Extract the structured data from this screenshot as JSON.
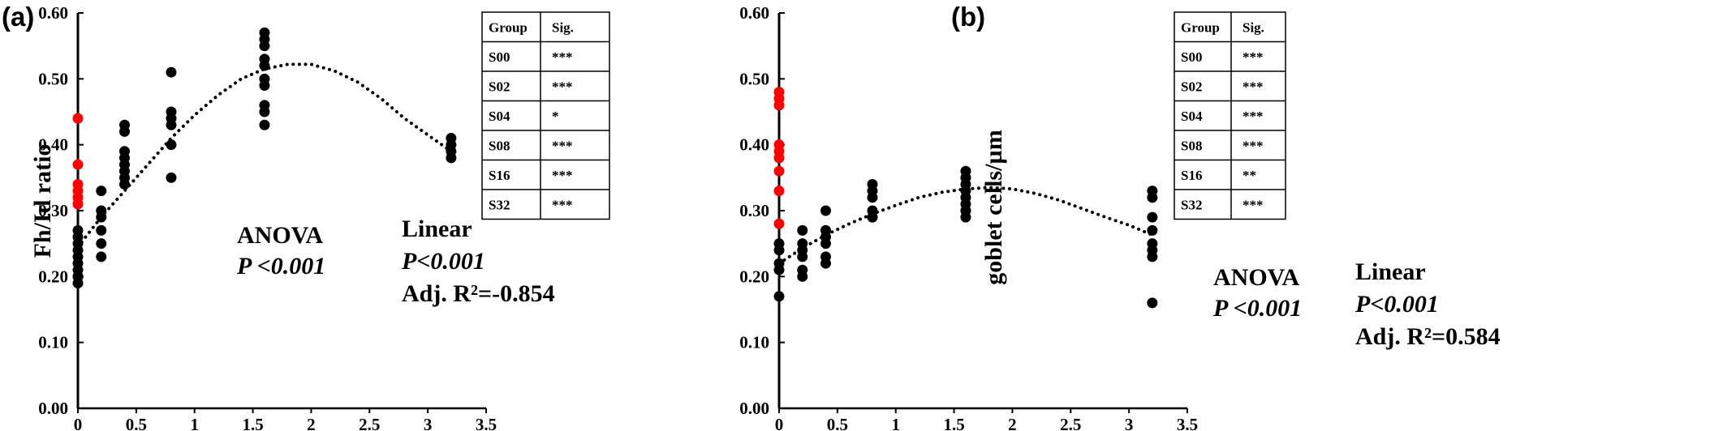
{
  "chart_data": [
    {
      "type": "scatter",
      "panel_label": "(a)",
      "ylabel": "Fh/Id ratio",
      "xlim": [
        0,
        3.5
      ],
      "ylim": [
        0,
        0.6
      ],
      "xticks": [
        "0",
        "0.5",
        "1",
        "1.5",
        "2",
        "2.5",
        "3",
        "3.5"
      ],
      "yticks": [
        "0.00",
        "0.10",
        "0.20",
        "0.30",
        "0.40",
        "0.50",
        "0.60"
      ],
      "series": [
        {
          "color": "#ff0000",
          "x": [
            0,
            0,
            0,
            0,
            0,
            0,
            0
          ],
          "y": [
            0.44,
            0.37,
            0.34,
            0.33,
            0.32,
            0.31,
            0.31
          ]
        },
        {
          "color": "#000000",
          "x": [
            0,
            0,
            0,
            0,
            0,
            0,
            0,
            0,
            0,
            0,
            0.2,
            0.2,
            0.2,
            0.2,
            0.2,
            0.2,
            0.4,
            0.4,
            0.4,
            0.4,
            0.4,
            0.4,
            0.4,
            0.4,
            0.8,
            0.8,
            0.8,
            0.8,
            0.8,
            0.8,
            1.6,
            1.6,
            1.6,
            1.6,
            1.6,
            1.6,
            1.6,
            1.6,
            1.6,
            1.6,
            3.2,
            3.2,
            3.2,
            3.2
          ],
          "y": [
            0.27,
            0.26,
            0.25,
            0.24,
            0.23,
            0.22,
            0.21,
            0.2,
            0.2,
            0.19,
            0.33,
            0.3,
            0.29,
            0.27,
            0.25,
            0.23,
            0.43,
            0.42,
            0.39,
            0.38,
            0.37,
            0.36,
            0.35,
            0.34,
            0.51,
            0.45,
            0.44,
            0.43,
            0.4,
            0.35,
            0.57,
            0.56,
            0.55,
            0.53,
            0.52,
            0.5,
            0.49,
            0.46,
            0.45,
            0.43,
            0.41,
            0.4,
            0.39,
            0.38
          ]
        }
      ],
      "trendline": {
        "style": "dotted",
        "x": [
          0,
          0.2,
          0.4,
          0.6,
          0.8,
          1,
          1.2,
          1.4,
          1.6,
          1.8,
          2,
          2.2,
          2.4,
          2.6,
          2.8,
          3,
          3.2
        ],
        "y": [
          0.245,
          0.29,
          0.33,
          0.37,
          0.41,
          0.445,
          0.475,
          0.5,
          0.515,
          0.522,
          0.522,
          0.512,
          0.495,
          0.47,
          0.44,
          0.415,
          0.39
        ]
      },
      "annotations": {
        "anova_title": "ANOVA",
        "anova_p": "P <0.001",
        "linear_title": "Linear",
        "linear_p": "P<0.001",
        "adj_r2": "Adj. R²=-0.854"
      },
      "table": {
        "headers": [
          "Group",
          "Sig."
        ],
        "rows": [
          [
            "S00",
            "***"
          ],
          [
            "S02",
            "***"
          ],
          [
            "S04",
            "*"
          ],
          [
            "S08",
            "***"
          ],
          [
            "S16",
            "***"
          ],
          [
            "S32",
            "***"
          ]
        ]
      }
    },
    {
      "type": "scatter",
      "panel_label": "(b)",
      "ylabel": "goblet cells/µm",
      "xlim": [
        0,
        3.5
      ],
      "ylim": [
        0,
        0.6
      ],
      "xticks": [
        "0",
        "0.5",
        "1",
        "1.5",
        "2",
        "2.5",
        "3",
        "3.5"
      ],
      "yticks": [
        "0.00",
        "0.10",
        "0.20",
        "0.30",
        "0.40",
        "0.50",
        "0.60"
      ],
      "series": [
        {
          "color": "#ff0000",
          "x": [
            0,
            0,
            0,
            0,
            0,
            0,
            0,
            0,
            0
          ],
          "y": [
            0.48,
            0.47,
            0.46,
            0.4,
            0.39,
            0.38,
            0.36,
            0.33,
            0.28
          ]
        },
        {
          "color": "#000000",
          "x": [
            0,
            0,
            0,
            0,
            0,
            0.2,
            0.2,
            0.2,
            0.2,
            0.2,
            0.2,
            0.4,
            0.4,
            0.4,
            0.4,
            0.4,
            0.4,
            0.8,
            0.8,
            0.8,
            0.8,
            0.8,
            0.8,
            1.6,
            1.6,
            1.6,
            1.6,
            1.6,
            1.6,
            1.6,
            1.6,
            1.6,
            3.2,
            3.2,
            3.2,
            3.2,
            3.2,
            3.2,
            3.2,
            3.2
          ],
          "y": [
            0.25,
            0.24,
            0.22,
            0.21,
            0.17,
            0.27,
            0.25,
            0.24,
            0.23,
            0.21,
            0.2,
            0.3,
            0.27,
            0.26,
            0.25,
            0.23,
            0.22,
            0.34,
            0.33,
            0.32,
            0.3,
            0.29,
            0.29,
            0.36,
            0.35,
            0.34,
            0.33,
            0.32,
            0.31,
            0.3,
            0.3,
            0.29,
            0.33,
            0.32,
            0.29,
            0.27,
            0.25,
            0.24,
            0.23,
            0.16
          ]
        }
      ],
      "trendline": {
        "style": "dotted",
        "x": [
          0,
          0.2,
          0.4,
          0.6,
          0.8,
          1,
          1.2,
          1.4,
          1.6,
          1.8,
          2,
          2.2,
          2.4,
          2.6,
          2.8,
          3,
          3.2
        ],
        "y": [
          0.22,
          0.243,
          0.263,
          0.28,
          0.295,
          0.308,
          0.32,
          0.328,
          0.333,
          0.335,
          0.333,
          0.326,
          0.316,
          0.303,
          0.29,
          0.278,
          0.263
        ]
      },
      "annotations": {
        "anova_title": "ANOVA",
        "anova_p": "P <0.001",
        "linear_title": "Linear",
        "linear_p": "P<0.001",
        "adj_r2": "Adj. R²=0.584"
      },
      "table": {
        "headers": [
          "Group",
          "Sig."
        ],
        "rows": [
          [
            "S00",
            "***"
          ],
          [
            "S02",
            "***"
          ],
          [
            "S04",
            "***"
          ],
          [
            "S08",
            "***"
          ],
          [
            "S16",
            "**"
          ],
          [
            "S32",
            "***"
          ]
        ]
      }
    }
  ]
}
